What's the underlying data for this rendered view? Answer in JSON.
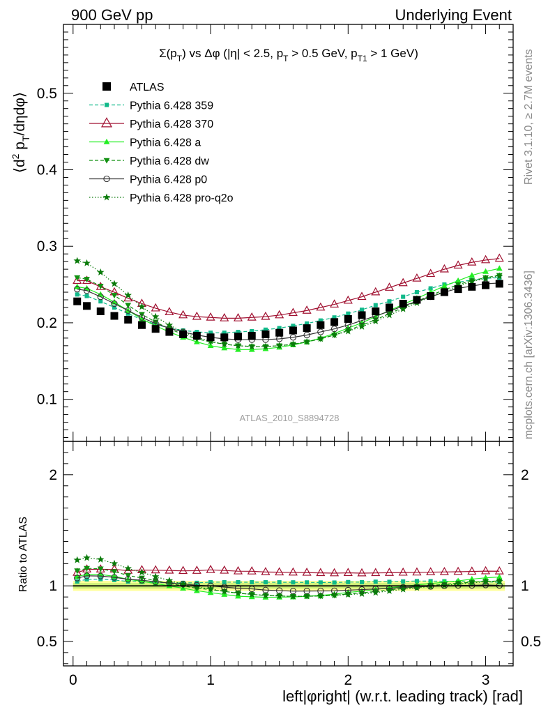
{
  "header": {
    "left": "900 GeV pp",
    "right": "Underlying Event"
  },
  "side": {
    "top": "Rivet 3.1.10, ≥ 2.7M events",
    "bottom": "mcplots.cern.ch [arXiv:1306.3436]"
  },
  "chart_data": [
    {
      "type": "scatter",
      "title": "Σ(pT) vs Δφ (|η| < 2.5, pT > 0.5 GeV, pT1 > 1 GeV)",
      "ylabel": "⟨d²pT/dηdφ⟩",
      "xlabel": "left|φright| (w.r.t. leading track) [rad]",
      "reference_label": "ATLAS_2010_S8894728",
      "xlim": [
        -0.07,
        3.2
      ],
      "ylim": [
        0.045,
        0.59
      ],
      "yticks": [
        "0.1",
        "0.2",
        "0.3",
        "0.4",
        "0.5"
      ],
      "xticks": [
        "0",
        "1",
        "2",
        "3"
      ],
      "series": [
        {
          "name": "ATLAS",
          "style": "square",
          "color": "#000000",
          "x": [
            0.03,
            0.1,
            0.2,
            0.3,
            0.4,
            0.5,
            0.6,
            0.7,
            0.8,
            0.9,
            1.0,
            1.1,
            1.2,
            1.3,
            1.4,
            1.5,
            1.6,
            1.7,
            1.8,
            1.9,
            2.0,
            2.1,
            2.2,
            2.3,
            2.4,
            2.5,
            2.6,
            2.7,
            2.8,
            2.9,
            3.0,
            3.1
          ],
          "y": [
            0.228,
            0.222,
            0.215,
            0.209,
            0.204,
            0.197,
            0.192,
            0.188,
            0.185,
            0.183,
            0.181,
            0.181,
            0.182,
            0.183,
            0.185,
            0.187,
            0.19,
            0.193,
            0.197,
            0.201,
            0.205,
            0.21,
            0.215,
            0.22,
            0.225,
            0.23,
            0.235,
            0.24,
            0.244,
            0.247,
            0.249,
            0.251
          ]
        },
        {
          "name": "Pythia 6.428 359",
          "style": "dash-smallsquare",
          "color": "#11b98a",
          "x": [
            0.03,
            0.1,
            0.2,
            0.3,
            0.4,
            0.5,
            0.6,
            0.7,
            0.8,
            0.9,
            1.0,
            1.1,
            1.2,
            1.3,
            1.4,
            1.5,
            1.6,
            1.7,
            1.8,
            1.9,
            2.0,
            2.1,
            2.2,
            2.3,
            2.4,
            2.5,
            2.6,
            2.7,
            2.8,
            2.9,
            3.0,
            3.1
          ],
          "y": [
            0.237,
            0.235,
            0.228,
            0.22,
            0.212,
            0.204,
            0.198,
            0.193,
            0.19,
            0.188,
            0.187,
            0.187,
            0.188,
            0.189,
            0.191,
            0.193,
            0.196,
            0.199,
            0.203,
            0.207,
            0.212,
            0.217,
            0.223,
            0.228,
            0.234,
            0.24,
            0.245,
            0.25,
            0.253,
            0.256,
            0.258,
            0.259
          ]
        },
        {
          "name": "Pythia 6.428 370",
          "style": "solid-opentriangle",
          "color": "#a01030",
          "x": [
            0.03,
            0.1,
            0.2,
            0.3,
            0.4,
            0.5,
            0.6,
            0.7,
            0.8,
            0.9,
            1.0,
            1.1,
            1.2,
            1.3,
            1.4,
            1.5,
            1.6,
            1.7,
            1.8,
            1.9,
            2.0,
            2.1,
            2.2,
            2.3,
            2.4,
            2.5,
            2.6,
            2.7,
            2.8,
            2.9,
            3.0,
            3.1
          ],
          "y": [
            0.255,
            0.255,
            0.247,
            0.24,
            0.232,
            0.225,
            0.219,
            0.214,
            0.21,
            0.208,
            0.207,
            0.206,
            0.206,
            0.207,
            0.208,
            0.21,
            0.213,
            0.216,
            0.22,
            0.224,
            0.229,
            0.234,
            0.24,
            0.246,
            0.252,
            0.258,
            0.264,
            0.27,
            0.275,
            0.279,
            0.282,
            0.284
          ]
        },
        {
          "name": "Pythia 6.428 a",
          "style": "solid-triangle",
          "color": "#22ee22",
          "x": [
            0.03,
            0.1,
            0.2,
            0.3,
            0.4,
            0.5,
            0.6,
            0.7,
            0.8,
            0.9,
            1.0,
            1.1,
            1.2,
            1.3,
            1.4,
            1.5,
            1.6,
            1.7,
            1.8,
            1.9,
            2.0,
            2.1,
            2.2,
            2.3,
            2.4,
            2.5,
            2.6,
            2.7,
            2.8,
            2.9,
            3.0,
            3.1
          ],
          "y": [
            0.247,
            0.245,
            0.237,
            0.227,
            0.216,
            0.205,
            0.196,
            0.188,
            0.181,
            0.175,
            0.17,
            0.167,
            0.165,
            0.165,
            0.166,
            0.168,
            0.171,
            0.175,
            0.18,
            0.186,
            0.193,
            0.2,
            0.208,
            0.216,
            0.224,
            0.232,
            0.24,
            0.248,
            0.255,
            0.262,
            0.267,
            0.271
          ]
        },
        {
          "name": "Pythia 6.428 dw",
          "style": "dash-downtriangle",
          "color": "#109010",
          "x": [
            0.03,
            0.1,
            0.2,
            0.3,
            0.4,
            0.5,
            0.6,
            0.7,
            0.8,
            0.9,
            1.0,
            1.1,
            1.2,
            1.3,
            1.4,
            1.5,
            1.6,
            1.7,
            1.8,
            1.9,
            2.0,
            2.1,
            2.2,
            2.3,
            2.4,
            2.5,
            2.6,
            2.7,
            2.8,
            2.9,
            3.0,
            3.1
          ],
          "y": [
            0.259,
            0.257,
            0.248,
            0.236,
            0.223,
            0.211,
            0.201,
            0.192,
            0.185,
            0.179,
            0.175,
            0.172,
            0.17,
            0.169,
            0.169,
            0.17,
            0.172,
            0.175,
            0.179,
            0.184,
            0.19,
            0.197,
            0.204,
            0.212,
            0.22,
            0.228,
            0.236,
            0.243,
            0.25,
            0.255,
            0.259,
            0.262
          ]
        },
        {
          "name": "Pythia 6.428 p0",
          "style": "solid-opencircle",
          "color": "#333333",
          "x": [
            0.03,
            0.1,
            0.2,
            0.3,
            0.4,
            0.5,
            0.6,
            0.7,
            0.8,
            0.9,
            1.0,
            1.1,
            1.2,
            1.3,
            1.4,
            1.5,
            1.6,
            1.7,
            1.8,
            1.9,
            2.0,
            2.1,
            2.2,
            2.3,
            2.4,
            2.5,
            2.6,
            2.7,
            2.8,
            2.9,
            3.0,
            3.1
          ],
          "y": [
            0.244,
            0.242,
            0.234,
            0.225,
            0.216,
            0.207,
            0.199,
            0.193,
            0.188,
            0.184,
            0.181,
            0.179,
            0.178,
            0.178,
            0.178,
            0.179,
            0.181,
            0.184,
            0.188,
            0.192,
            0.197,
            0.203,
            0.209,
            0.215,
            0.222,
            0.228,
            0.234,
            0.24,
            0.245,
            0.248,
            0.251,
            0.252
          ]
        },
        {
          "name": "Pythia 6.428 pro-q2o",
          "style": "dot-star",
          "color": "#0a7a0a",
          "x": [
            0.03,
            0.1,
            0.2,
            0.3,
            0.4,
            0.5,
            0.6,
            0.7,
            0.8,
            0.9,
            1.0,
            1.1,
            1.2,
            1.3,
            1.4,
            1.5,
            1.6,
            1.7,
            1.8,
            1.9,
            2.0,
            2.1,
            2.2,
            2.3,
            2.4,
            2.5,
            2.6,
            2.7,
            2.8,
            2.9,
            3.0,
            3.1
          ],
          "y": [
            0.281,
            0.278,
            0.266,
            0.251,
            0.236,
            0.221,
            0.208,
            0.197,
            0.188,
            0.181,
            0.176,
            0.172,
            0.17,
            0.169,
            0.169,
            0.17,
            0.172,
            0.175,
            0.179,
            0.184,
            0.189,
            0.195,
            0.202,
            0.21,
            0.218,
            0.226,
            0.234,
            0.241,
            0.248,
            0.254,
            0.258,
            0.261
          ]
        }
      ]
    },
    {
      "type": "scatter",
      "ylabel": "Ratio to ATLAS",
      "xlim": [
        -0.07,
        3.2
      ],
      "ylim": [
        0.28,
        2.3
      ],
      "yticks": [
        "0.5",
        "1",
        "2"
      ],
      "xticks": [
        "0",
        "1",
        "2",
        "3"
      ],
      "band": {
        "inner_color": "#ccee77",
        "outer_color": "#ffff99",
        "inner_halfwidth": 0.025,
        "outer_halfwidth": 0.045
      }
    }
  ]
}
